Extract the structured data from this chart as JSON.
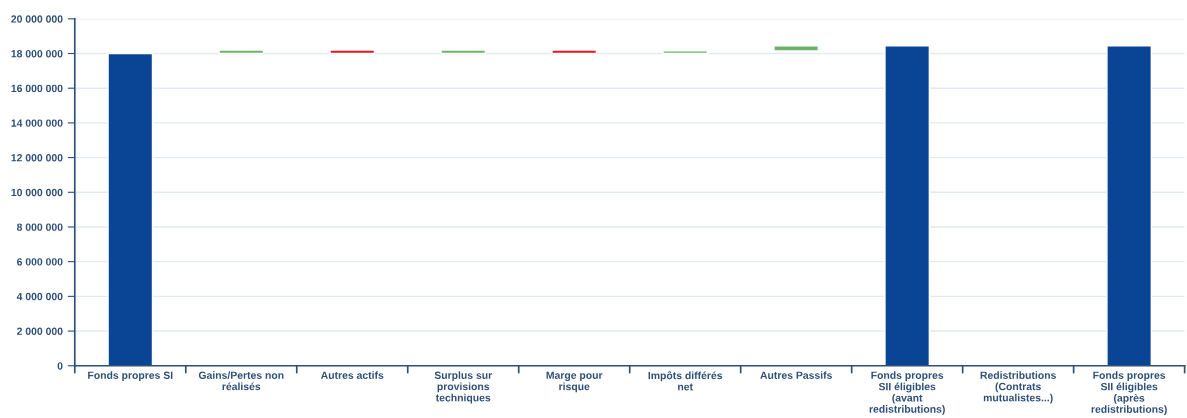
{
  "chart_data": {
    "type": "bar",
    "categories": [
      "Fonds propres SI",
      "Gains/Pertes non réalisés",
      "Autres actifs",
      "Surplus sur provisions techniques",
      "Marge pour risque",
      "Impôts différés net",
      "Autres Passifs",
      "Fonds propres SII éligibles (avant redistributions)",
      "Redistributions (Contrats mutualistes...)",
      "Fonds propres SII éligibles (après redistributions)"
    ],
    "base": [
      0,
      18000000,
      18200000,
      18000000,
      18200000,
      18000000,
      18150000,
      0,
      null,
      0
    ],
    "values": [
      18000000,
      200000,
      -200000,
      200000,
      -200000,
      150000,
      300000,
      18450000,
      null,
      18450000
    ],
    "colors": [
      "#0a4595",
      "#6ab46a",
      "#e8141c",
      "#6ab46a",
      "#e8141c",
      "#6ab46a",
      "#6ab46a",
      "#0a4595",
      "#6ab46a",
      "#0a4595"
    ],
    "ylim": [
      0,
      20000000
    ],
    "yticks": [
      {
        "value": 0,
        "label": "0"
      },
      {
        "value": 2000000,
        "label": "2 000 000"
      },
      {
        "value": 4000000,
        "label": "4 000 000"
      },
      {
        "value": 6000000,
        "label": "6 000 000"
      },
      {
        "value": 8000000,
        "label": "8 000 000"
      },
      {
        "value": 10000000,
        "label": "10 000 000"
      },
      {
        "value": 12000000,
        "label": "12 000 000"
      },
      {
        "value": 14000000,
        "label": "14 000 000"
      },
      {
        "value": 16000000,
        "label": "16 000 000"
      },
      {
        "value": 18000000,
        "label": "18 000 000"
      },
      {
        "value": 20000000,
        "label": "20 000 000"
      }
    ],
    "grid": "y"
  }
}
